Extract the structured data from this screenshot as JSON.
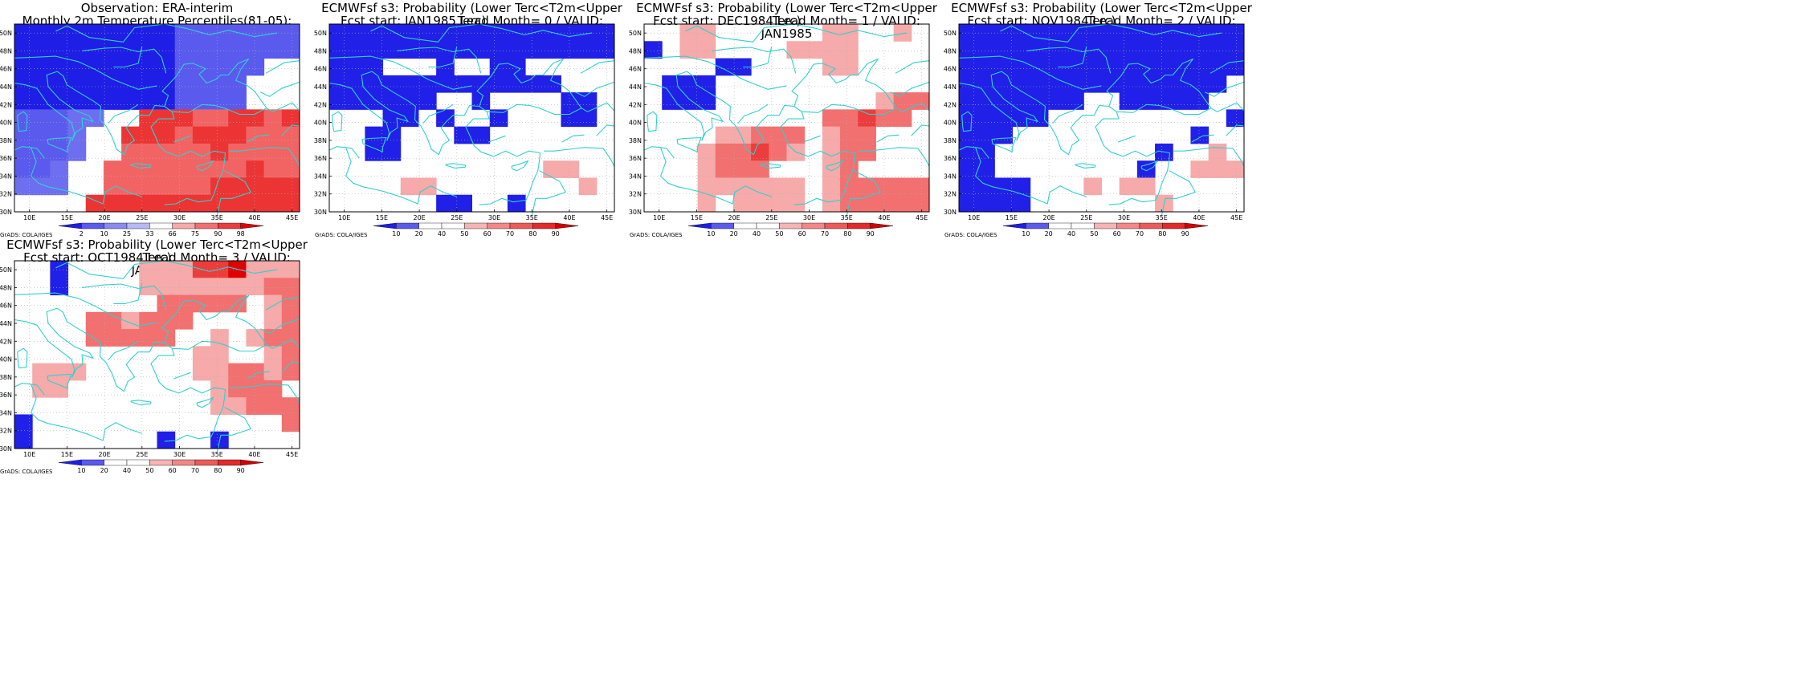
{
  "grid": {
    "lat_labels": [
      "30N",
      "32N",
      "34N",
      "36N",
      "38N",
      "40N",
      "42N",
      "44N",
      "46N",
      "48N",
      "50N"
    ],
    "lon_labels": [
      "10E",
      "15E",
      "20E",
      "25E",
      "30E",
      "35E",
      "40E",
      "45E"
    ]
  },
  "colors": {
    "coast": "#30d0d0",
    "obs_scale": [
      "#1414e6",
      "#4646ee",
      "#7878f2",
      "#aaaaf6",
      "#ffffff",
      "#f6aaaa",
      "#f27878",
      "#ee4646",
      "#e61414"
    ],
    "prob_scale": [
      "#1414e6",
      "#4646ee",
      "#ffffff",
      "#ffffff",
      "#f6aaaa",
      "#f27878",
      "#ee4646",
      "#e61414",
      "#d40000"
    ]
  },
  "panels": [
    {
      "title1": "Observation: ERA-interim",
      "title2": "Monthly 2m Temperature Percentiles(81-05): JAN1985",
      "credit": "GrADS: COLA/IGES",
      "colorbar": [
        "2",
        "10",
        "25",
        "33",
        "66",
        "75",
        "90",
        "98"
      ],
      "chart_data": {
        "type": "heatmap",
        "lon_range": [
          8,
          46
        ],
        "lat_range": [
          30,
          51
        ],
        "cells": [
          "0000000000000000",
          "0000000000000000",
          "0000000000000000",
          "0001000000000000",
          "0000000000000000",
          "0000000000000000",
          "0000000000000000",
          "0000000000000000",
          "0000000000000000",
          "0000000000000000"
        ]
      }
    },
    {
      "title1": "ECMWFsf s3: Probability (Lower Terc<T2m<Upper Terc)",
      "title2": "Fcst start: JAN1985   Lead Month= 0 / VALID: JAN1985",
      "credit": "GrADS: COLA/IGES",
      "colorbar": [
        "10",
        "20",
        "40",
        "50",
        "60",
        "70",
        "80",
        "90"
      ],
      "chart_data": {
        "type": "heatmap",
        "lon_range": [
          8,
          46
        ],
        "lat_range": [
          30,
          51
        ]
      }
    },
    {
      "title1": "ECMWFsf s3: Probability (Lower Terc<T2m<Upper Terc)",
      "title2": "Fcst start: DEC1984   Lead Month= 1 / VALID: JAN1985",
      "credit": "GrADS: COLA/IGES",
      "colorbar": [
        "10",
        "20",
        "40",
        "50",
        "60",
        "70",
        "80",
        "90"
      ],
      "chart_data": {
        "type": "heatmap",
        "lon_range": [
          8,
          46
        ],
        "lat_range": [
          30,
          51
        ]
      }
    },
    {
      "title1": "ECMWFsf s3: Probability (Lower Terc<T2m<Upper Terc)",
      "title2": "Fcst start: NOV1984   Lead Month= 2 / VALID: JAN1985",
      "credit": "GrADS: COLA/IGES",
      "colorbar": [
        "10",
        "20",
        "40",
        "50",
        "60",
        "70",
        "80",
        "90"
      ],
      "chart_data": {
        "type": "heatmap",
        "lon_range": [
          8,
          46
        ],
        "lat_range": [
          30,
          51
        ]
      }
    },
    {
      "title1": "ECMWFsf s3: Probability (Lower Terc<T2m<Upper Terc)",
      "title2": "Fcst start: OCT1984   Lead Month= 3 / VALID: JAN1985",
      "credit": "GrADS: COLA/IGES",
      "colorbar": [
        "10",
        "20",
        "40",
        "50",
        "60",
        "70",
        "80",
        "90"
      ],
      "chart_data": {
        "type": "heatmap",
        "lon_range": [
          8,
          46
        ],
        "lat_range": [
          30,
          51
        ]
      }
    }
  ],
  "cellmaps": [
    [
      "7777777444444444",
      "7777777444444444",
      "7777777444444444",
      "7777777444444444",
      "6677777444433333",
      "6644444444433333",
      "5554444444433333",
      "5554444444433333",
      "4444444444433333",
      "4444444444433333"
    ],
    [
      "4444444444444444",
      "3313444444444344",
      "1113334333444344",
      "1113334333434444",
      "1113333433334444",
      "1113344444334444",
      "1133333333333334",
      "1133443344433334",
      "3344443344443334",
      "1133144444344334"
    ]
  ]
}
